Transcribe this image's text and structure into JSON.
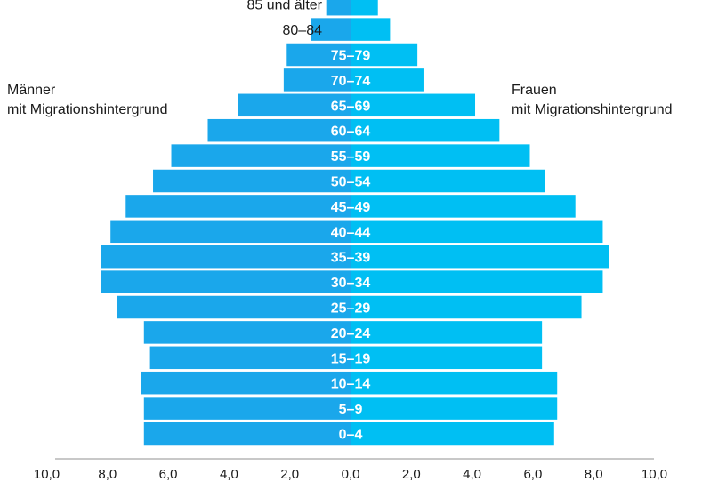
{
  "chart_data": {
    "type": "bar",
    "orientation": "horizontal",
    "subtype": "population-pyramid",
    "categories": [
      "0–4",
      "5–9",
      "10–14",
      "15–19",
      "20–24",
      "25–29",
      "30–34",
      "35–39",
      "40–44",
      "45–49",
      "50–54",
      "55–59",
      "60–64",
      "65–69",
      "70–74",
      "75–79",
      "80–84",
      "85 und älter"
    ],
    "series": [
      {
        "name": "Männer mit Migrationshintergrund",
        "side": "left",
        "color": "#1AA7EB",
        "values": [
          6.8,
          6.8,
          6.9,
          6.6,
          6.8,
          7.7,
          8.2,
          8.2,
          7.9,
          7.4,
          6.5,
          5.9,
          4.7,
          3.7,
          2.2,
          2.1,
          1.3,
          0.8
        ]
      },
      {
        "name": "Frauen mit Migrationshintergrund",
        "side": "right",
        "color": "#00BFF3",
        "values": [
          6.7,
          6.8,
          6.8,
          6.3,
          6.3,
          7.6,
          8.3,
          8.5,
          8.3,
          7.4,
          6.4,
          5.9,
          4.9,
          4.1,
          2.4,
          2.2,
          1.3,
          0.9
        ]
      }
    ],
    "xlim": [
      -10,
      10
    ],
    "x_ticks": [
      "10,0",
      "8,0",
      "6,0",
      "4,0",
      "2,0",
      "0,0",
      "2,0",
      "4,0",
      "6,0",
      "8,0",
      "10,0"
    ],
    "x_tick_values": [
      -10,
      -8,
      -6,
      -4,
      -2,
      0,
      2,
      4,
      6,
      8,
      10
    ],
    "grid": false,
    "legend": "side labels",
    "label_color": "#ffffff",
    "outside_label_color": "#1a1a1a",
    "axis_color": "#b5b5b5"
  },
  "labels": {
    "left_line1": "Männer",
    "left_line2": "mit Migrationshintergrund",
    "right_line1": "Frauen",
    "right_line2": "mit Migrationshintergrund"
  }
}
